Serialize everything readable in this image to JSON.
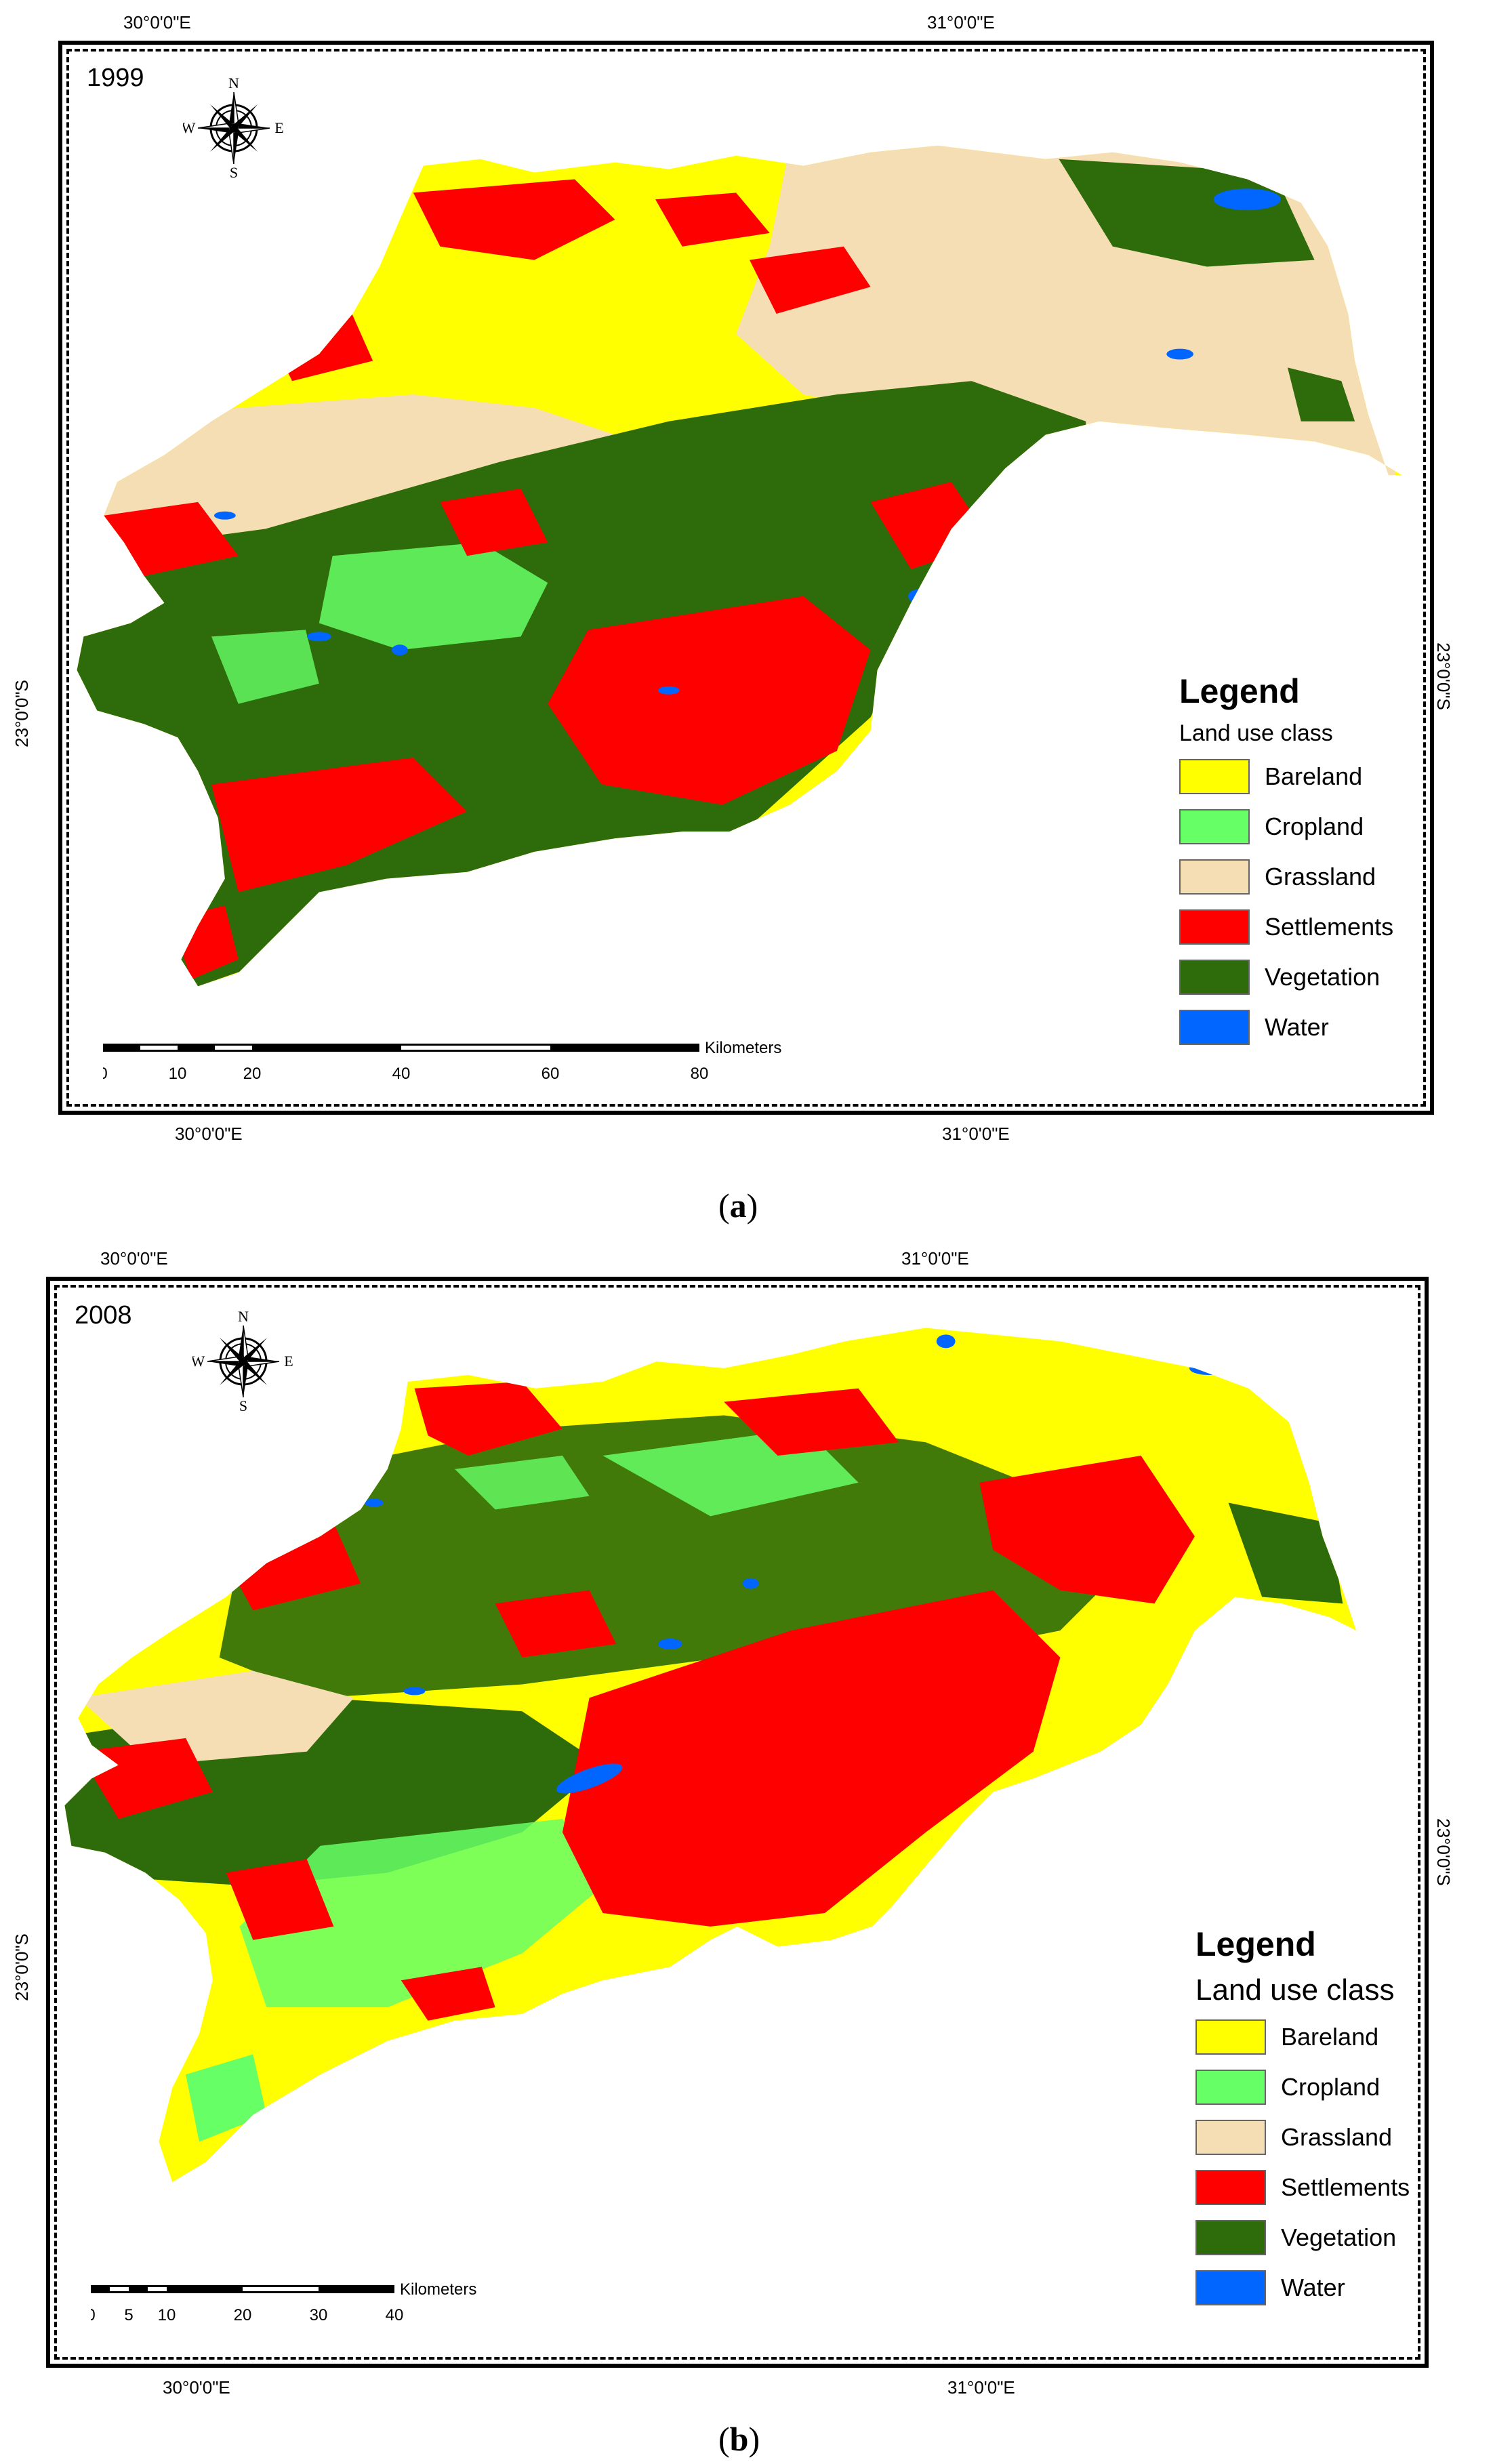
{
  "panels": [
    {
      "year": "1999",
      "caption_letter": "a",
      "coords": {
        "top_left": "30°0'0\"E",
        "top_right": "31°0'0\"E",
        "bottom_left": "30°0'0\"E",
        "bottom_right": "31°0'0\"E",
        "left": "23°0'0\"S",
        "right": "23°0'0\"S"
      },
      "compass": {
        "n": "N",
        "s": "S",
        "e": "E",
        "w": "W"
      },
      "legend": {
        "title": "Legend",
        "subtitle": "Land use class",
        "items": [
          {
            "label": "Bareland",
            "color": "#ffff00"
          },
          {
            "label": "Cropland",
            "color": "#66ff66"
          },
          {
            "label": "Grassland",
            "color": "#f5deb3"
          },
          {
            "label": "Settlements",
            "color": "#ff0000"
          },
          {
            "label": "Vegetation",
            "color": "#2e6b0a"
          },
          {
            "label": "Water",
            "color": "#0066ff"
          }
        ]
      },
      "scale": {
        "unit": "Kilometers",
        "ticks": [
          "0",
          "10",
          "20",
          "40",
          "60",
          "80"
        ]
      }
    },
    {
      "year": "2008",
      "caption_letter": "b",
      "coords": {
        "top_left": "30°0'0\"E",
        "top_right": "31°0'0\"E",
        "bottom_left": "30°0'0\"E",
        "bottom_right": "31°0'0\"E",
        "left": "23°0'0\"S",
        "right": "23°0'0\"S"
      },
      "compass": {
        "n": "N",
        "s": "S",
        "e": "E",
        "w": "W"
      },
      "legend": {
        "title": "Legend",
        "subtitle": "Land use class",
        "items": [
          {
            "label": "Bareland",
            "color": "#ffff00"
          },
          {
            "label": "Cropland",
            "color": "#66ff66"
          },
          {
            "label": "Grassland",
            "color": "#f5deb3"
          },
          {
            "label": "Settlements",
            "color": "#ff0000"
          },
          {
            "label": "Vegetation",
            "color": "#2e6b0a"
          },
          {
            "label": "Water",
            "color": "#0066ff"
          }
        ]
      },
      "scale": {
        "unit": "Kilometers",
        "ticks": [
          "0",
          "5",
          "10",
          "20",
          "30",
          "40"
        ]
      }
    }
  ]
}
